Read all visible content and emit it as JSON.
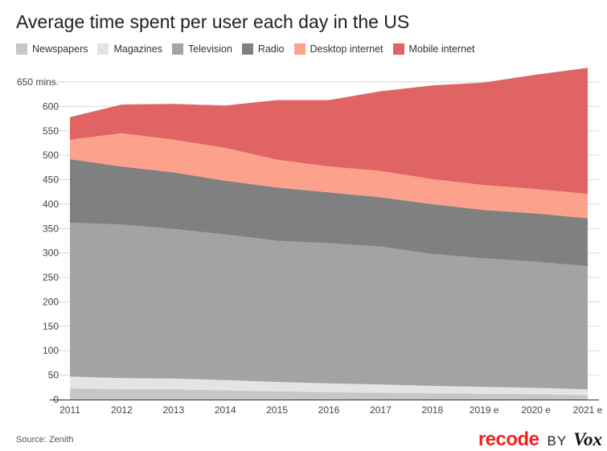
{
  "chart_data": {
    "type": "area",
    "stacked": true,
    "title": "Average time spent per user each day in the US",
    "xlabel": "",
    "ylabel": "",
    "ylim": [
      0,
      650
    ],
    "yticks": [
      0,
      50,
      100,
      150,
      200,
      250,
      300,
      350,
      400,
      450,
      500,
      550,
      600,
      650
    ],
    "ytick_labels": [
      "0",
      "50",
      "100",
      "150",
      "200",
      "250",
      "300",
      "350",
      "400",
      "450",
      "500",
      "550",
      "600",
      "650 mins."
    ],
    "x": [
      "2011",
      "2012",
      "2013",
      "2014",
      "2015",
      "2016",
      "2017",
      "2018",
      "2019 e",
      "2020 e",
      "2021 e"
    ],
    "series": [
      {
        "name": "Newspapers",
        "color": "#c7c7c7",
        "values": [
          23,
          21,
          21,
          19,
          17,
          15,
          14,
          13,
          12,
          11,
          9
        ]
      },
      {
        "name": "Magazines",
        "color": "#e4e4e4",
        "values": [
          24,
          23,
          22,
          21,
          19,
          18,
          17,
          15,
          14,
          13,
          12
        ]
      },
      {
        "name": "Television",
        "color": "#a3a3a3",
        "values": [
          315,
          314,
          306,
          298,
          289,
          287,
          282,
          270,
          263,
          258,
          252
        ]
      },
      {
        "name": "Radio",
        "color": "#808080",
        "values": [
          130,
          119,
          116,
          110,
          109,
          104,
          101,
          102,
          99,
          99,
          98
        ]
      },
      {
        "name": "Desktop internet",
        "color": "#fca18b",
        "values": [
          40,
          68,
          67,
          67,
          57,
          53,
          54,
          51,
          51,
          50,
          50
        ]
      },
      {
        "name": "Mobile internet",
        "color": "#e06463",
        "values": [
          46,
          59,
          73,
          87,
          122,
          136,
          163,
          192,
          210,
          234,
          258
        ]
      }
    ],
    "legend_position": "top-left"
  },
  "source": "Source: Zenith",
  "brand": {
    "recode": "recode",
    "by": "BY",
    "vox": "Vox"
  }
}
